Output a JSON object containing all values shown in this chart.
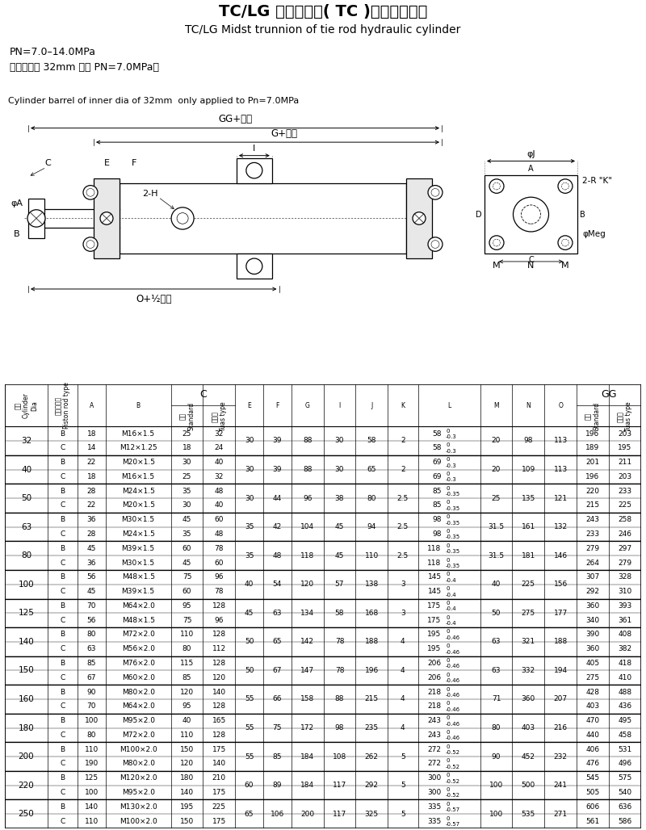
{
  "title_cn": "TC/LG 中间耳轴型( TC )拉杆式液压缸",
  "title_en": "TC/LG Midst trunnion of tie rod hydraulic cylinder",
  "note1": "PN=7.0–14.0MPa",
  "note2": "（缸筒内径 32mm 仅用 PN=7.0MPa）",
  "note3": "Cylinder barrel of inner dia of 32mm  only applied to Pn=7.0MPa",
  "bg_color": "#ffffff",
  "table_data": [
    [
      32,
      "B",
      18,
      "M16×1.5",
      25,
      32,
      30,
      39,
      88,
      30,
      58,
      2,
      58,
      "0\n-0.3",
      20,
      98,
      113,
      196,
      203
    ],
    [
      32,
      "C",
      14,
      "M12×1.25",
      18,
      24,
      30,
      39,
      88,
      30,
      58,
      2,
      58,
      "0\n-0.3",
      20,
      98,
      113,
      189,
      195
    ],
    [
      40,
      "B",
      22,
      "M20×1.5",
      30,
      40,
      30,
      39,
      88,
      30,
      65,
      2,
      69,
      "0\n-0.3",
      20,
      109,
      113,
      201,
      211
    ],
    [
      40,
      "C",
      18,
      "M16×1.5",
      25,
      32,
      30,
      39,
      88,
      30,
      65,
      2,
      69,
      "0\n-0.3",
      20,
      109,
      113,
      196,
      203
    ],
    [
      50,
      "B",
      28,
      "M24×1.5",
      35,
      48,
      30,
      44,
      96,
      38,
      80,
      2.5,
      85,
      "0\n-0.35",
      25,
      135,
      121,
      220,
      233
    ],
    [
      50,
      "C",
      22,
      "M20×1.5",
      30,
      40,
      30,
      44,
      96,
      38,
      80,
      2.5,
      85,
      "0\n-0.35",
      25,
      135,
      121,
      215,
      225
    ],
    [
      63,
      "B",
      36,
      "M30×1.5",
      45,
      60,
      35,
      42,
      104,
      45,
      94,
      2.5,
      98,
      "0\n-0.35",
      31.5,
      161,
      132,
      243,
      258
    ],
    [
      63,
      "C",
      28,
      "M24×1.5",
      35,
      48,
      35,
      42,
      104,
      45,
      94,
      2.5,
      98,
      "0\n-0.35",
      31.5,
      161,
      132,
      233,
      246
    ],
    [
      80,
      "B",
      45,
      "M39×1.5",
      60,
      78,
      35,
      48,
      118,
      45,
      110,
      2.5,
      118,
      "0\n-0.35",
      31.5,
      181,
      146,
      279,
      297
    ],
    [
      80,
      "C",
      36,
      "M30×1.5",
      45,
      60,
      35,
      48,
      118,
      45,
      110,
      2.5,
      118,
      "0\n-0.35",
      31.5,
      181,
      146,
      264,
      279
    ],
    [
      100,
      "B",
      56,
      "M48×1.5",
      75,
      96,
      40,
      54,
      120,
      57,
      138,
      3,
      145,
      "0\n-0.4",
      40,
      225,
      156,
      307,
      328
    ],
    [
      100,
      "C",
      45,
      "M39×1.5",
      60,
      78,
      40,
      54,
      120,
      57,
      138,
      3,
      145,
      "0\n-0.4",
      40,
      225,
      156,
      292,
      310
    ],
    [
      125,
      "B",
      70,
      "M64×2.0",
      95,
      128,
      45,
      63,
      134,
      58,
      168,
      3,
      175,
      "0\n-0.4",
      50,
      275,
      177,
      360,
      393
    ],
    [
      125,
      "C",
      56,
      "M48×1.5",
      75,
      96,
      45,
      63,
      134,
      58,
      168,
      3,
      175,
      "0\n-0.4",
      50,
      275,
      177,
      340,
      361
    ],
    [
      140,
      "B",
      80,
      "M72×2.0",
      110,
      128,
      50,
      65,
      142,
      78,
      188,
      4,
      195,
      "0\n-0.46",
      63,
      321,
      188,
      390,
      408
    ],
    [
      140,
      "C",
      63,
      "M56×2.0",
      80,
      112,
      50,
      65,
      142,
      78,
      188,
      4,
      195,
      "0\n-0.46",
      63,
      321,
      188,
      360,
      382
    ],
    [
      150,
      "B",
      85,
      "M76×2.0",
      115,
      128,
      50,
      67,
      147,
      78,
      196,
      4,
      206,
      "0\n-0.46",
      63,
      332,
      194,
      405,
      418
    ],
    [
      150,
      "C",
      67,
      "M60×2.0",
      85,
      120,
      50,
      67,
      147,
      78,
      196,
      4,
      206,
      "0\n-0.46",
      63,
      332,
      194,
      275,
      410
    ],
    [
      160,
      "B",
      90,
      "M80×2.0",
      120,
      140,
      55,
      66,
      158,
      88,
      215,
      4,
      218,
      "0\n-0.46",
      71,
      360,
      207,
      428,
      488
    ],
    [
      160,
      "C",
      70,
      "M64×2.0",
      95,
      128,
      55,
      66,
      158,
      88,
      215,
      4,
      218,
      "0\n-0.46",
      71,
      360,
      207,
      403,
      436
    ],
    [
      180,
      "B",
      100,
      "M95×2.0",
      40,
      165,
      55,
      75,
      172,
      98,
      235,
      4,
      243,
      "0\n-0.46",
      80,
      403,
      216,
      470,
      495
    ],
    [
      180,
      "C",
      80,
      "M72×2.0",
      110,
      128,
      55,
      75,
      172,
      98,
      235,
      4,
      243,
      "0\n-0.46",
      80,
      403,
      216,
      440,
      458
    ],
    [
      200,
      "B",
      110,
      "M100×2.0",
      150,
      175,
      55,
      85,
      184,
      108,
      262,
      5,
      272,
      "0\n-0.52",
      90,
      452,
      232,
      406,
      531
    ],
    [
      200,
      "C",
      190,
      "M80×2.0",
      120,
      140,
      55,
      85,
      184,
      108,
      262,
      5,
      272,
      "0\n-0.52",
      90,
      452,
      232,
      476,
      496
    ],
    [
      220,
      "B",
      125,
      "M120×2.0",
      180,
      210,
      60,
      89,
      184,
      117,
      292,
      5,
      300,
      "0\n-0.52",
      100,
      500,
      241,
      545,
      575
    ],
    [
      220,
      "C",
      100,
      "M95×2.0",
      140,
      175,
      60,
      89,
      184,
      117,
      292,
      5,
      300,
      "0\n-0.52",
      100,
      500,
      241,
      505,
      540
    ],
    [
      250,
      "B",
      140,
      "M130×2.0",
      195,
      225,
      65,
      106,
      200,
      117,
      325,
      5,
      335,
      "0\n-0.57",
      100,
      535,
      271,
      606,
      636
    ],
    [
      250,
      "C",
      110,
      "M100×2.0",
      150,
      175,
      65,
      106,
      200,
      117,
      325,
      5,
      335,
      "0\n-0.57",
      100,
      535,
      271,
      561,
      586
    ]
  ]
}
